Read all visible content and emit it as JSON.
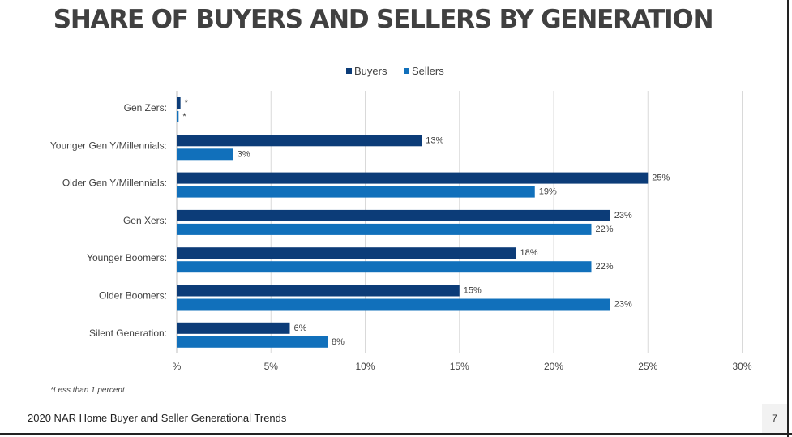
{
  "header": {
    "title": "SHARE OF BUYERS AND SELLERS BY GENERATION"
  },
  "footer": {
    "source": "2020 NAR Home Buyer and Seller Generational Trends",
    "footnote": "*Less than 1 percent",
    "page_number": "7"
  },
  "colors": {
    "buyers": "#0c3c78",
    "sellers": "#1170bb",
    "grid": "#d9d9d9"
  },
  "chart_data": {
    "type": "bar",
    "orientation": "horizontal",
    "title": "SHARE OF BUYERS AND SELLERS BY GENERATION",
    "categories": [
      "Gen Zers:",
      "Younger Gen Y/Millennials:",
      "Older Gen Y/Millennials:",
      "Gen Xers:",
      "Younger Boomers:",
      "Older Boomers:",
      "Silent Generation:"
    ],
    "series": [
      {
        "name": "Buyers",
        "values": [
          0.2,
          13,
          25,
          23,
          18,
          15,
          6
        ],
        "labels": [
          "*",
          "13%",
          "25%",
          "23%",
          "18%",
          "15%",
          "6%"
        ]
      },
      {
        "name": "Sellers",
        "values": [
          0.1,
          3,
          19,
          22,
          22,
          23,
          8
        ],
        "labels": [
          "*",
          "3%",
          "19%",
          "22%",
          "22%",
          "23%",
          "8%"
        ]
      }
    ],
    "xlim": [
      0,
      30
    ],
    "xticks": [
      0,
      5,
      10,
      15,
      20,
      25,
      30
    ],
    "xtick_labels": [
      "%",
      "5%",
      "10%",
      "15%",
      "20%",
      "25%",
      "30%"
    ],
    "xlabel": "",
    "ylabel": "",
    "grid": true,
    "legend_position": "top-center"
  }
}
